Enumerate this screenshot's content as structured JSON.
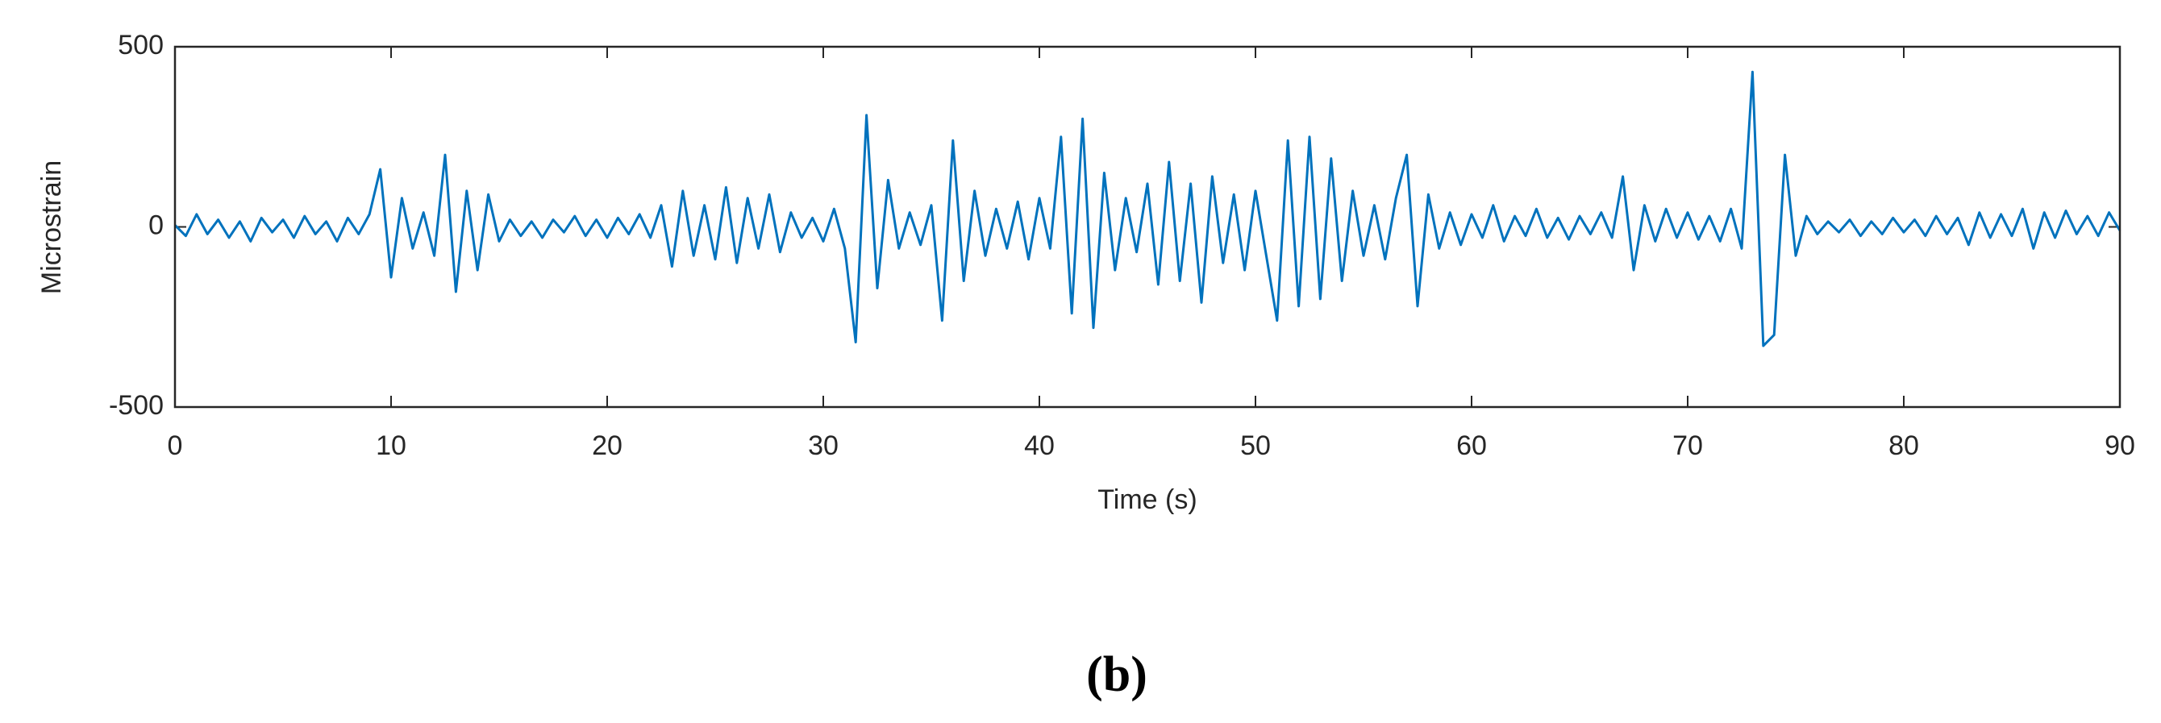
{
  "chart_data": {
    "type": "line",
    "xlabel": "Time (s)",
    "ylabel": "Microstrain",
    "caption": "(b)",
    "x": [
      0,
      0.5,
      1,
      1.5,
      2,
      2.5,
      3,
      3.5,
      4,
      4.5,
      5,
      5.5,
      6,
      6.5,
      7,
      7.5,
      8,
      8.5,
      9,
      9.5,
      10,
      10.5,
      11,
      11.5,
      12,
      12.5,
      13,
      13.5,
      14,
      14.5,
      15,
      15.5,
      16,
      16.5,
      17,
      17.5,
      18,
      18.5,
      19,
      19.5,
      20,
      20.5,
      21,
      21.5,
      22,
      22.5,
      23,
      23.5,
      24,
      24.5,
      25,
      25.5,
      26,
      26.5,
      27,
      27.5,
      28,
      28.5,
      29,
      29.5,
      30,
      30.5,
      31,
      31.5,
      32,
      32.5,
      33,
      33.5,
      34,
      34.5,
      35,
      35.5,
      36,
      36.5,
      37,
      37.5,
      38,
      38.5,
      39,
      39.5,
      40,
      40.5,
      41,
      41.5,
      42,
      42.5,
      43,
      43.5,
      44,
      44.5,
      45,
      45.5,
      46,
      46.5,
      47,
      47.5,
      48,
      48.5,
      49,
      49.5,
      50,
      50.5,
      51,
      51.5,
      52,
      52.5,
      53,
      53.5,
      54,
      54.5,
      55,
      55.5,
      56,
      56.5,
      57,
      57.5,
      58,
      58.5,
      59,
      59.5,
      60,
      60.5,
      61,
      61.5,
      62,
      62.5,
      63,
      63.5,
      64,
      64.5,
      65,
      65.5,
      66,
      66.5,
      67,
      67.5,
      68,
      68.5,
      69,
      69.5,
      70,
      70.5,
      71,
      71.5,
      72,
      72.5,
      73,
      73.5,
      74,
      74.5,
      75,
      75.5,
      76,
      76.5,
      77,
      77.5,
      78,
      78.5,
      79,
      79.5,
      80,
      80.5,
      81,
      81.5,
      82,
      82.5,
      83,
      83.5,
      84,
      84.5,
      85,
      85.5,
      86,
      86.5,
      87,
      87.5,
      88,
      88.5,
      89,
      89.5,
      90
    ],
    "series": [
      {
        "color": "#0072bd",
        "values": [
          5,
          -25,
          35,
          -20,
          20,
          -30,
          15,
          -40,
          25,
          -15,
          20,
          -30,
          30,
          -20,
          15,
          -40,
          25,
          -20,
          35,
          160,
          -140,
          80,
          -60,
          40,
          -80,
          200,
          -180,
          100,
          -120,
          90,
          -40,
          20,
          -25,
          15,
          -30,
          20,
          -15,
          30,
          -25,
          20,
          -30,
          25,
          -20,
          35,
          -30,
          60,
          -110,
          100,
          -80,
          60,
          -90,
          110,
          -100,
          80,
          -60,
          90,
          -70,
          40,
          -30,
          25,
          -40,
          50,
          -60,
          -320,
          310,
          -170,
          130,
          -60,
          40,
          -50,
          60,
          -260,
          240,
          -150,
          100,
          -80,
          50,
          -60,
          70,
          -90,
          80,
          -60,
          250,
          -240,
          300,
          -280,
          150,
          -120,
          80,
          -70,
          120,
          -160,
          180,
          -150,
          120,
          -210,
          140,
          -100,
          90,
          -120,
          100,
          -80,
          -260,
          240,
          -220,
          250,
          -200,
          190,
          -150,
          100,
          -80,
          60,
          -90,
          80,
          200,
          -220,
          90,
          -60,
          40,
          -50,
          35,
          -30,
          60,
          -40,
          30,
          -25,
          50,
          -30,
          25,
          -35,
          30,
          -20,
          40,
          -30,
          140,
          -120,
          60,
          -40,
          50,
          -30,
          40,
          -35,
          30,
          -40,
          50,
          -60,
          430,
          -330,
          -300,
          200,
          -80,
          30,
          -20,
          15,
          -15,
          20,
          -25,
          15,
          -20,
          25,
          -15,
          20,
          -25,
          30,
          -20,
          25,
          -50,
          40,
          -30,
          35,
          -25,
          50,
          -60,
          40,
          -30,
          45,
          -20,
          30,
          -25,
          40,
          -10
        ]
      }
    ],
    "xlim": [
      0,
      90
    ],
    "xticks": [
      0,
      10,
      20,
      30,
      40,
      50,
      60,
      70,
      80,
      90
    ],
    "ylim": [
      -500,
      500
    ],
    "yticks": [
      -500,
      0,
      500
    ],
    "grid": false
  }
}
